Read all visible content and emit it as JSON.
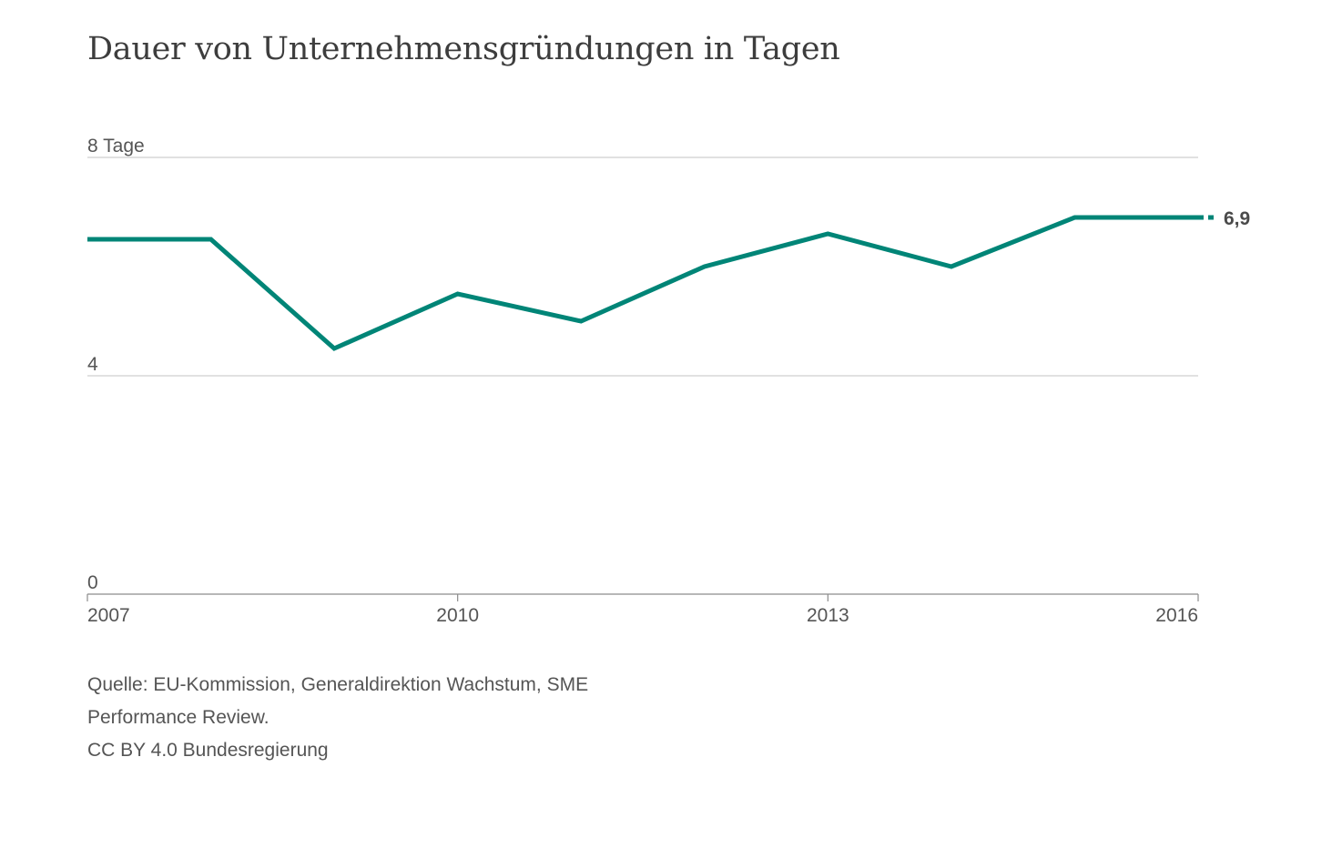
{
  "chart_data": {
    "type": "line",
    "title": "Dauer von Unternehmensgründungen in Tagen",
    "x": [
      2007,
      2008,
      2009,
      2010,
      2011,
      2012,
      2013,
      2014,
      2015,
      2016
    ],
    "series": [
      {
        "values": [
          6.5,
          6.5,
          4.5,
          5.5,
          5.0,
          6.0,
          6.6,
          6.0,
          6.9,
          6.9
        ],
        "color": "#008577"
      }
    ],
    "end_label": "6,9",
    "ylim": [
      0,
      8
    ],
    "y_ticks": [
      {
        "value": 0,
        "label": "0"
      },
      {
        "value": 4,
        "label": "4"
      },
      {
        "value": 8,
        "label": "8 Tage"
      }
    ],
    "x_ticks": [
      {
        "value": 2007,
        "label": "2007"
      },
      {
        "value": 2010,
        "label": "2010"
      },
      {
        "value": 2013,
        "label": "2013"
      },
      {
        "value": 2016,
        "label": "2016"
      }
    ],
    "xlim": [
      2007,
      2016
    ],
    "grid": true
  },
  "source": {
    "line1": "Quelle: EU-Kommission, Generaldirektion Wachstum, SME",
    "line2": "Performance Review.",
    "line3": "CC BY 4.0 Bundesregierung"
  }
}
